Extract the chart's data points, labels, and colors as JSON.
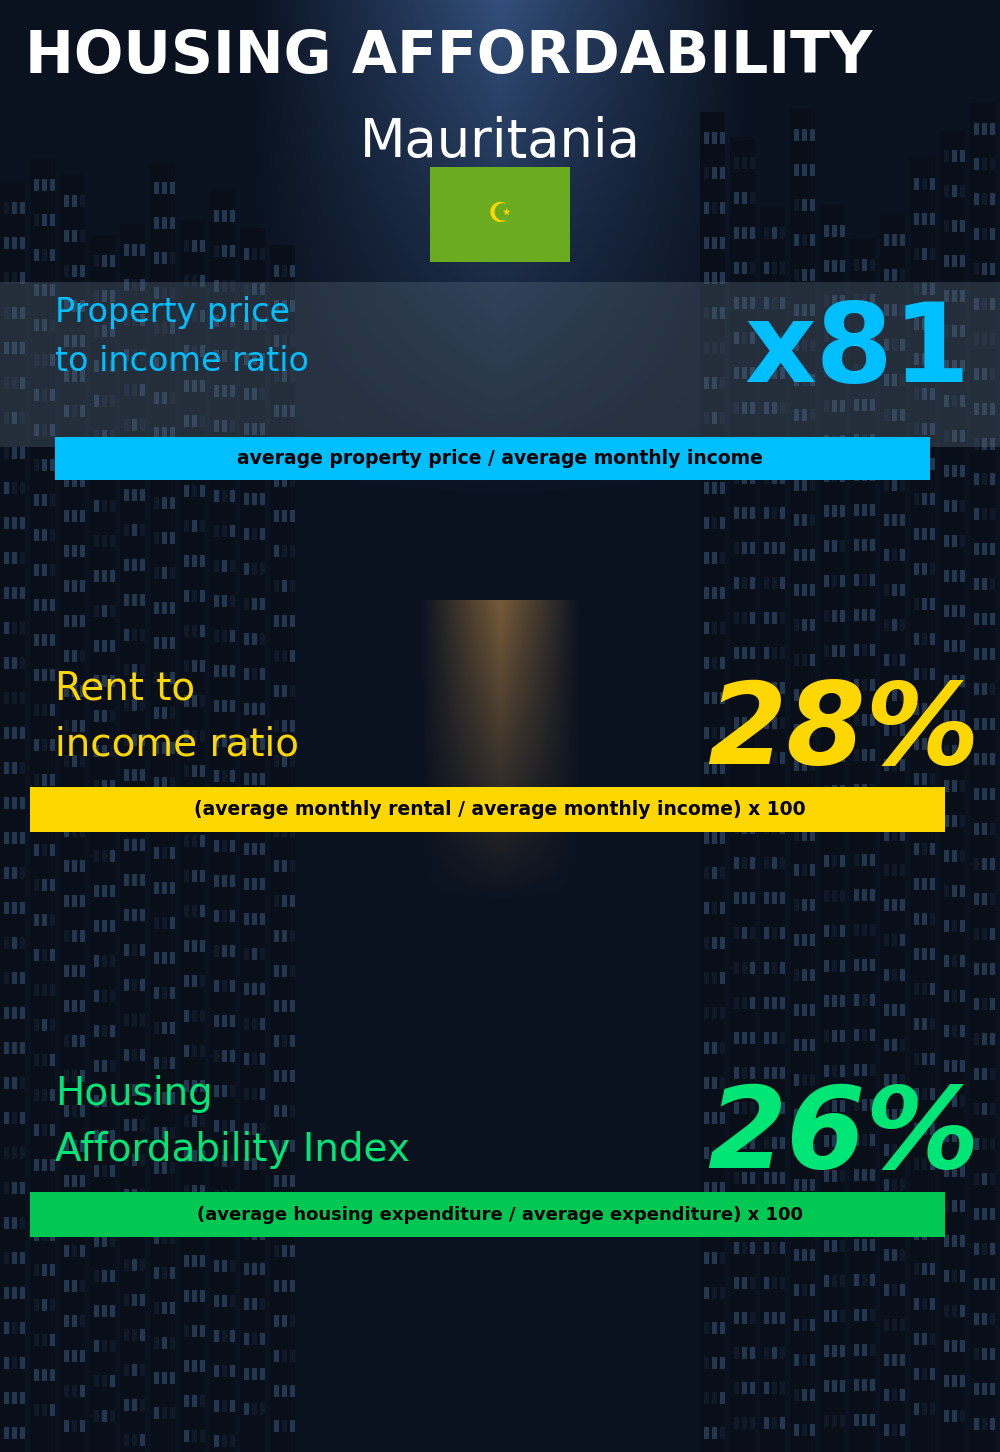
{
  "title_line1": "HOUSING AFFORDABILITY",
  "title_line2": "Mauritania",
  "bg_color": "#0a1520",
  "title_color": "#ffffff",
  "section1_label": "Property price\nto income ratio",
  "section1_value": "x81",
  "section1_label_color": "#00bfff",
  "section1_value_color": "#00bfff",
  "section1_band_color": "#00bfff",
  "section1_band_text": "average property price / average monthly income",
  "section1_band_text_color": "#000000",
  "section2_label": "Rent to\nincome ratio",
  "section2_value": "28%",
  "section2_label_color": "#ffd700",
  "section2_value_color": "#ffd700",
  "section2_band_color": "#ffd700",
  "section2_band_text": "(average monthly rental / average monthly income) x 100",
  "section2_band_text_color": "#000000",
  "section3_label": "Housing\nAffordability Index",
  "section3_value": "26%",
  "section3_label_color": "#00e676",
  "section3_value_color": "#00e676",
  "section3_band_color": "#00c853",
  "section3_band_text": "(average housing expenditure / average expenditure) x 100",
  "section3_band_text_color": "#000000",
  "flag_bg": "#6aab20",
  "flag_symbol_color": "#ffd700"
}
